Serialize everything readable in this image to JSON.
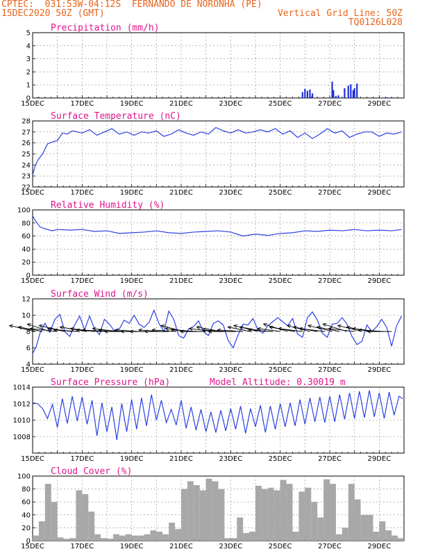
{
  "header": {
    "line1": "CPTEC:  031:53W-04:12S  FERNANDO DE NORONHA (PE)",
    "line2": "15DEC2020 50Z (GMT)",
    "grid_note": "Vertical Grid Line: 50Z",
    "code": "TQ0126L028"
  },
  "x_tick_labels": [
    "15DEC",
    "17DEC",
    "19DEC",
    "21DEC",
    "23DEC",
    "25DEC",
    "27DEC",
    "29DEC"
  ],
  "colors": {
    "title": "#e0148c",
    "header": "#e8641b",
    "line": "#2b40e0",
    "bar": "#1e2fd8",
    "cloud": "#a8a8a8",
    "wind_arrow": "#000000"
  },
  "chart_data": [
    {
      "type": "bar",
      "title": "Precipitation (mm/h)",
      "ylim": [
        0,
        5
      ],
      "yticks": [
        "0",
        "1",
        "2",
        "3",
        "4",
        "5"
      ],
      "x": [
        0.2,
        10.9,
        11.0,
        11.1,
        11.2,
        11.3,
        12.1,
        12.15,
        12.25,
        12.35,
        12.6,
        12.75,
        12.85,
        12.95,
        13.0,
        13.1,
        14.3
      ],
      "values": [
        0.05,
        0.45,
        0.7,
        0.55,
        0.65,
        0.35,
        1.25,
        0.6,
        0.15,
        0.2,
        0.75,
        0.95,
        1.05,
        0.6,
        0.75,
        1.1,
        0.05
      ]
    },
    {
      "type": "line",
      "title": "Surface Temperature (nC)",
      "ylim": [
        22,
        28
      ],
      "yticks": [
        "22",
        "23",
        "24",
        "25",
        "26",
        "27",
        "28"
      ],
      "x": [
        0,
        0.1,
        0.2,
        0.3,
        0.4,
        0.6,
        0.8,
        1.0,
        1.2,
        1.4,
        1.6,
        1.8,
        2.0,
        2.3,
        2.6,
        2.9,
        3.2,
        3.5,
        3.8,
        4.1,
        4.4,
        4.7,
        5.0,
        5.3,
        5.6,
        5.9,
        6.2,
        6.5,
        6.8,
        7.1,
        7.4,
        7.7,
        8.0,
        8.3,
        8.6,
        8.9,
        9.2,
        9.5,
        9.8,
        10.1,
        10.4,
        10.7,
        11.0,
        11.3,
        11.6,
        11.9,
        12.2,
        12.5,
        12.8,
        13.1,
        13.4,
        13.7,
        14.0,
        14.3,
        14.6,
        14.9
      ],
      "values": [
        23.1,
        23.9,
        24.4,
        24.7,
        25.0,
        25.9,
        26.1,
        26.2,
        26.9,
        26.8,
        27.1,
        27.0,
        26.9,
        27.2,
        26.7,
        27.0,
        27.3,
        26.8,
        27.0,
        26.7,
        27.0,
        26.9,
        27.1,
        26.6,
        26.8,
        27.2,
        26.9,
        26.7,
        27.0,
        26.8,
        27.4,
        27.1,
        26.9,
        27.2,
        26.9,
        27.0,
        27.2,
        27.0,
        27.3,
        26.8,
        27.1,
        26.5,
        26.9,
        26.4,
        26.8,
        27.3,
        26.9,
        27.1,
        26.5,
        26.8,
        27.0,
        27.0,
        26.6,
        26.9,
        26.8,
        27.0
      ]
    },
    {
      "type": "line",
      "title": "Relative Humidity (%)",
      "ylim": [
        0,
        100
      ],
      "yticks": [
        "0",
        "20",
        "40",
        "60",
        "80",
        "100"
      ],
      "x": [
        0,
        0.1,
        0.3,
        0.5,
        0.8,
        1.0,
        1.5,
        2.0,
        2.5,
        3.0,
        3.5,
        4.0,
        4.5,
        5.0,
        5.5,
        6.0,
        6.5,
        7.0,
        7.5,
        8.0,
        8.5,
        9.0,
        9.5,
        10.0,
        10.5,
        11.0,
        11.5,
        12.0,
        12.5,
        13.0,
        13.5,
        14.0,
        14.5,
        14.9
      ],
      "values": [
        91,
        84,
        74,
        71,
        68,
        70,
        69,
        70,
        67,
        68,
        64,
        65,
        66,
        68,
        65,
        64,
        66,
        67,
        68,
        66,
        60,
        63,
        61,
        64,
        65,
        68,
        67,
        69,
        68,
        70,
        68,
        69,
        68,
        70
      ]
    },
    {
      "type": "line",
      "title": "Surface Wind (m/s)",
      "ylim": [
        4,
        12
      ],
      "yticks": [
        "4",
        "6",
        "8",
        "10",
        "12"
      ],
      "x": [
        0,
        0.15,
        0.3,
        0.5,
        0.7,
        0.9,
        1.1,
        1.3,
        1.5,
        1.7,
        1.9,
        2.1,
        2.3,
        2.5,
        2.7,
        2.9,
        3.1,
        3.3,
        3.5,
        3.7,
        3.9,
        4.1,
        4.3,
        4.5,
        4.7,
        4.9,
        5.1,
        5.3,
        5.5,
        5.7,
        5.9,
        6.1,
        6.3,
        6.5,
        6.7,
        6.9,
        7.1,
        7.3,
        7.5,
        7.7,
        7.9,
        8.1,
        8.3,
        8.5,
        8.7,
        8.9,
        9.1,
        9.3,
        9.5,
        9.7,
        9.9,
        10.1,
        10.3,
        10.5,
        10.7,
        10.9,
        11.1,
        11.3,
        11.5,
        11.7,
        11.9,
        12.1,
        12.3,
        12.5,
        12.7,
        12.9,
        13.1,
        13.3,
        13.5,
        13.7,
        13.9,
        14.1,
        14.3,
        14.5,
        14.7,
        14.9
      ],
      "values": [
        5.3,
        6.2,
        7.8,
        9.0,
        7.9,
        9.5,
        10.1,
        8.0,
        7.4,
        8.8,
        9.9,
        8.2,
        9.9,
        8.3,
        7.6,
        9.5,
        8.9,
        8.1,
        8.3,
        9.4,
        9.0,
        10.0,
        8.9,
        8.5,
        9.1,
        10.6,
        9.0,
        8.0,
        10.5,
        9.5,
        7.5,
        7.2,
        8.3,
        8.6,
        9.3,
        8.0,
        7.5,
        9.0,
        9.3,
        8.8,
        6.9,
        6.0,
        7.6,
        8.9,
        8.8,
        9.6,
        8.2,
        7.8,
        8.7,
        9.2,
        9.7,
        9.2,
        8.7,
        9.6,
        7.7,
        7.3,
        9.7,
        10.4,
        9.4,
        7.8,
        7.3,
        8.9,
        9.0,
        9.7,
        8.9,
        7.4,
        6.4,
        6.8,
        8.8,
        8.0,
        8.6,
        9.5,
        8.5,
        6.2,
        8.7,
        9.9
      ]
    },
    {
      "type": "line",
      "title": "Surface Pressure (hPa)",
      "annotation": "Model Altitude: 0.30019 m",
      "ylim": [
        1006,
        1014
      ],
      "yticks": [
        "1008",
        "1010",
        "1012",
        "1014"
      ],
      "x": [
        0,
        0.2,
        0.4,
        0.6,
        0.8,
        1.0,
        1.2,
        1.4,
        1.6,
        1.8,
        2.0,
        2.2,
        2.4,
        2.6,
        2.8,
        3.0,
        3.2,
        3.4,
        3.6,
        3.8,
        4.0,
        4.2,
        4.4,
        4.6,
        4.8,
        5.0,
        5.2,
        5.4,
        5.6,
        5.8,
        6.0,
        6.2,
        6.4,
        6.6,
        6.8,
        7.0,
        7.2,
        7.4,
        7.6,
        7.8,
        8.0,
        8.2,
        8.4,
        8.6,
        8.8,
        9.0,
        9.2,
        9.4,
        9.6,
        9.8,
        10.0,
        10.2,
        10.4,
        10.6,
        10.8,
        11.0,
        11.2,
        11.4,
        11.6,
        11.8,
        12.0,
        12.2,
        12.4,
        12.6,
        12.8,
        13.0,
        13.2,
        13.4,
        13.6,
        13.8,
        14.0,
        14.2,
        14.4,
        14.6,
        14.8,
        14.95
      ],
      "values": [
        1012.1,
        1012.0,
        1011.4,
        1010.2,
        1011.9,
        1009.1,
        1012.6,
        1009.6,
        1012.9,
        1009.9,
        1012.8,
        1009.5,
        1012.4,
        1008.1,
        1012.1,
        1008.6,
        1011.6,
        1007.6,
        1012.0,
        1008.6,
        1012.5,
        1008.9,
        1012.7,
        1009.3,
        1013.1,
        1010.0,
        1012.4,
        1009.7,
        1011.3,
        1009.4,
        1012.4,
        1009.0,
        1011.6,
        1008.8,
        1011.3,
        1008.6,
        1011.0,
        1008.5,
        1011.2,
        1008.7,
        1011.4,
        1008.9,
        1011.7,
        1008.4,
        1011.4,
        1009.2,
        1011.8,
        1008.5,
        1011.7,
        1008.9,
        1012.0,
        1009.2,
        1012.1,
        1009.3,
        1012.5,
        1009.5,
        1012.7,
        1009.8,
        1012.8,
        1009.7,
        1012.9,
        1009.8,
        1013.1,
        1010.1,
        1013.3,
        1010.2,
        1013.5,
        1010.3,
        1013.6,
        1010.4,
        1013.3,
        1010.2,
        1013.4,
        1010.6,
        1012.9,
        1012.6
      ]
    },
    {
      "type": "bar",
      "title": "Cloud Cover (%)",
      "ylim": [
        0,
        100
      ],
      "yticks": [
        "0",
        "20",
        "40",
        "60",
        "80",
        "100"
      ],
      "x": [
        0.0,
        0.25,
        0.5,
        0.75,
        1.0,
        1.25,
        1.5,
        1.75,
        2.0,
        2.25,
        2.5,
        2.75,
        3.0,
        3.25,
        3.5,
        3.75,
        4.0,
        4.25,
        4.5,
        4.75,
        5.0,
        5.25,
        5.5,
        5.75,
        6.0,
        6.25,
        6.5,
        6.75,
        7.0,
        7.25,
        7.5,
        7.75,
        8.0,
        8.25,
        8.5,
        8.75,
        9.0,
        9.25,
        9.5,
        9.75,
        10.0,
        10.25,
        10.5,
        10.75,
        11.0,
        11.25,
        11.5,
        11.75,
        12.0,
        12.25,
        12.5,
        12.75,
        13.0,
        13.25,
        13.5,
        13.75,
        14.0,
        14.25,
        14.5,
        14.75
      ],
      "values": [
        8,
        30,
        88,
        60,
        5,
        3,
        4,
        78,
        72,
        45,
        10,
        4,
        3,
        10,
        8,
        10,
        8,
        8,
        10,
        16,
        14,
        10,
        28,
        18,
        80,
        92,
        86,
        78,
        96,
        92,
        80,
        4,
        4,
        36,
        12,
        14,
        85,
        80,
        82,
        78,
        94,
        88,
        14,
        76,
        82,
        60,
        36,
        95,
        88,
        10,
        20,
        88,
        64,
        40,
        40,
        14,
        30,
        16,
        8,
        4
      ]
    }
  ],
  "wind_arrows": {
    "x": [
      0.1,
      0.4,
      0.7,
      1.0,
      1.3,
      1.6,
      1.9,
      2.2,
      2.5,
      2.8,
      3.1,
      3.4,
      3.7,
      4.0,
      4.3,
      4.6,
      4.9,
      5.2,
      5.5,
      5.8,
      6.1,
      6.4,
      6.7,
      7.0,
      7.3,
      7.6,
      7.9,
      8.2,
      8.5,
      8.8,
      9.1,
      9.4,
      9.7,
      10.0,
      10.3,
      10.6,
      10.9,
      11.2,
      11.5,
      11.8,
      12.1,
      12.4,
      12.7,
      13.0,
      13.3,
      13.6,
      13.9,
      14.2,
      14.5
    ],
    "u": [
      -8.5,
      -8.0,
      -7.5,
      -9.0,
      -8.5,
      -8.0,
      -8.5,
      -9.0,
      -8.0,
      -8.5,
      -9.0,
      -8.0,
      -8.5,
      -9.0,
      -8.0,
      -8.5,
      -8.0,
      -7.5,
      -8.0,
      -8.0,
      -7.5,
      -8.5,
      -9.0,
      -8.5,
      -8.0,
      -8.0,
      -8.5,
      -9.0,
      -8.5,
      -7.5,
      -8.0,
      -8.5,
      -8.0,
      -7.5,
      -8.0,
      -8.5,
      -8.0,
      -7.5,
      -8.0,
      -8.5,
      -8.0,
      -7.5,
      -8.0,
      -8.5,
      -8.0,
      -7.5,
      -8.0,
      -8.5,
      -8.0
    ],
    "v": [
      2.0,
      1.5,
      2.5,
      1.0,
      2.0,
      1.0,
      0.5,
      1.5,
      1.0,
      0.5,
      0.5,
      1.0,
      0.5,
      0.0,
      0.5,
      0.0,
      0.0,
      0.5,
      0.0,
      0.5,
      2.0,
      1.0,
      0.5,
      0.0,
      1.0,
      1.5,
      0.5,
      0.0,
      0.5,
      1.5,
      2.0,
      1.5,
      0.5,
      1.0,
      2.5,
      1.5,
      1.0,
      2.0,
      1.5,
      1.0,
      2.0,
      1.5,
      2.5,
      1.0,
      2.0,
      1.5,
      1.0,
      0.5,
      0.0
    ]
  }
}
